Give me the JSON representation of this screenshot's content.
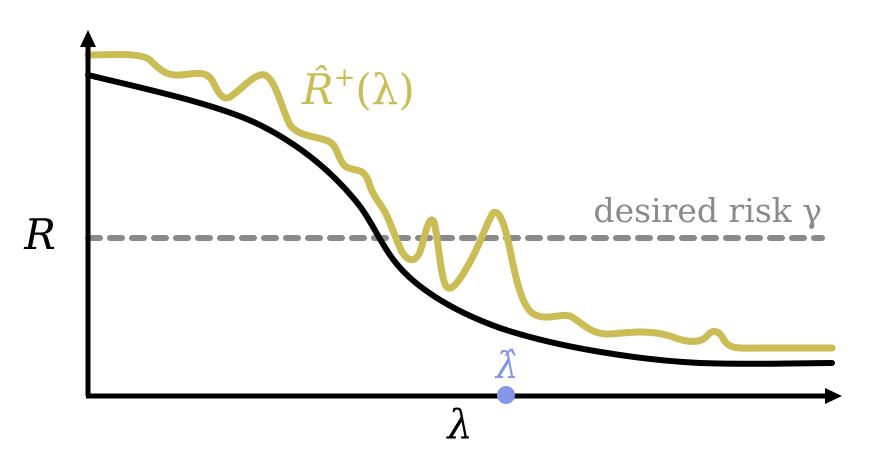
{
  "labels": {
    "y_axis": "R",
    "x_axis": "λ",
    "upper_curve": {
      "base": "R̂",
      "sup": "+",
      "arg": "(λ)"
    },
    "threshold": "desired risk γ",
    "lambda_hat": "λ̂"
  },
  "colors": {
    "axis": "#000000",
    "true_risk": "#000000",
    "upper_bound": "#cbbd55",
    "threshold": "#8a8a8a",
    "lambda_hat": "#8596e6"
  }
}
